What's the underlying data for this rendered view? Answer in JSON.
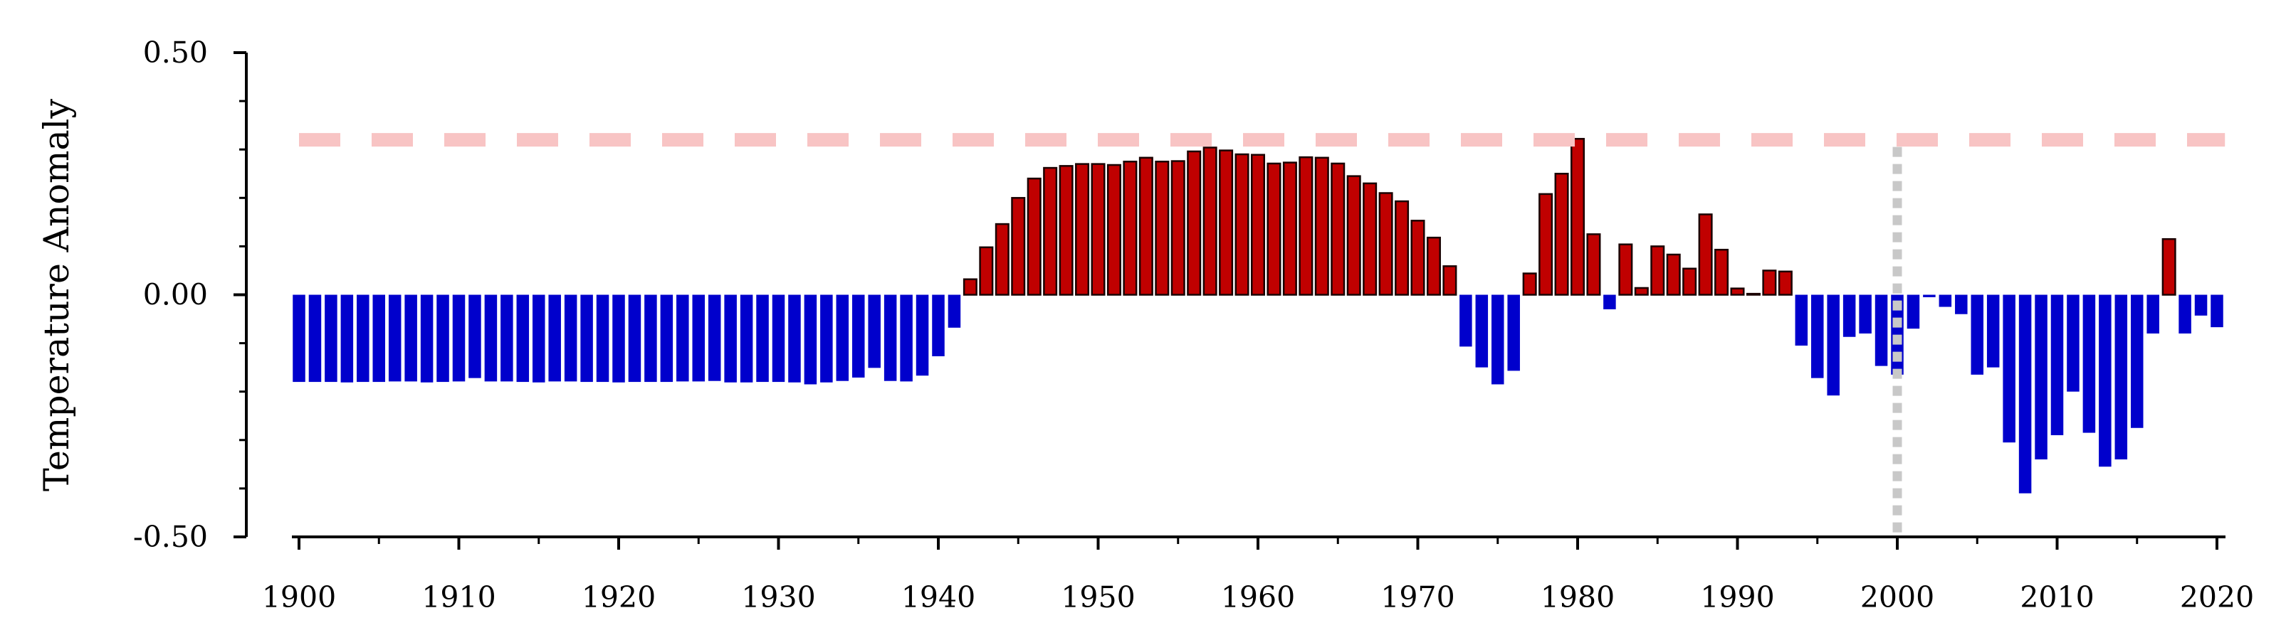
{
  "chart_data": {
    "type": "bar",
    "title": "",
    "xlabel": "",
    "ylabel": "Temperature Anomaly",
    "x_range": [
      1899.5,
      2020.5
    ],
    "ylim": [
      -0.5,
      0.5
    ],
    "x_ticks": [
      "1900",
      "1910",
      "1920",
      "1930",
      "1940",
      "1950",
      "1960",
      "1970",
      "1980",
      "1990",
      "2000",
      "2010",
      "2020"
    ],
    "y_ticks": [
      "-0.50",
      "0.00",
      "0.50"
    ],
    "grid": false,
    "legend": "none",
    "positive_color": "#c00000",
    "negative_color": "#0000cc",
    "reference_line": {
      "y": 0.32,
      "color": "#f8c4c4",
      "style": "dashed"
    },
    "vertical_marker": {
      "x": 2000,
      "color": "#c8c8c8",
      "style": "dotted"
    },
    "series": [
      {
        "x": [
          1900,
          1901,
          1902,
          1903,
          1904,
          1905,
          1906,
          1907,
          1908,
          1909,
          1910,
          1911,
          1912,
          1913,
          1914,
          1915,
          1916,
          1917,
          1918,
          1919,
          1920,
          1921,
          1922,
          1923,
          1924,
          1925,
          1926,
          1927,
          1928,
          1929,
          1930,
          1931,
          1932,
          1933,
          1934,
          1935,
          1936,
          1937,
          1938,
          1939,
          1940,
          1941,
          1942,
          1943,
          1944,
          1945,
          1946,
          1947,
          1948,
          1949,
          1950,
          1951,
          1952,
          1953,
          1954,
          1955,
          1956,
          1957,
          1958,
          1959,
          1960,
          1961,
          1962,
          1963,
          1964,
          1965,
          1966,
          1967,
          1968,
          1969,
          1970,
          1971,
          1972,
          1973,
          1974,
          1975,
          1976,
          1977,
          1978,
          1979,
          1980,
          1981,
          1982,
          1983,
          1984,
          1985,
          1986,
          1987,
          1988,
          1989,
          1990,
          1991,
          1992,
          1993,
          1994,
          1995,
          1996,
          1997,
          1998,
          1999,
          2000,
          2001,
          2002,
          2003,
          2004,
          2005,
          2006,
          2007,
          2008,
          2009,
          2010,
          2011,
          2012,
          2013,
          2014,
          2015,
          2016,
          2017,
          2018,
          2019,
          2020
        ],
        "values": [
          -0.18,
          -0.18,
          -0.18,
          -0.181,
          -0.18,
          -0.18,
          -0.179,
          -0.179,
          -0.181,
          -0.18,
          -0.179,
          -0.172,
          -0.179,
          -0.179,
          -0.18,
          -0.181,
          -0.179,
          -0.179,
          -0.18,
          -0.18,
          -0.181,
          -0.18,
          -0.18,
          -0.18,
          -0.179,
          -0.179,
          -0.178,
          -0.181,
          -0.181,
          -0.18,
          -0.18,
          -0.181,
          -0.185,
          -0.181,
          -0.178,
          -0.171,
          -0.151,
          -0.178,
          -0.179,
          -0.167,
          -0.127,
          -0.068,
          0.032,
          0.098,
          0.146,
          0.2,
          0.24,
          0.262,
          0.266,
          0.27,
          0.27,
          0.268,
          0.275,
          0.283,
          0.275,
          0.276,
          0.296,
          0.304,
          0.298,
          0.29,
          0.289,
          0.271,
          0.273,
          0.284,
          0.283,
          0.271,
          0.245,
          0.23,
          0.21,
          0.193,
          0.153,
          0.118,
          0.059,
          -0.107,
          -0.15,
          -0.185,
          -0.157,
          0.044,
          0.208,
          0.25,
          0.322,
          0.125,
          -0.03,
          0.104,
          0.014,
          0.1,
          0.083,
          0.054,
          0.166,
          0.093,
          0.013,
          0.002,
          0.05,
          0.048,
          -0.105,
          -0.172,
          -0.208,
          -0.087,
          -0.08,
          -0.147,
          -0.165,
          -0.07,
          -0.005,
          -0.025,
          -0.04,
          -0.165,
          -0.15,
          -0.305,
          -0.41,
          -0.34,
          -0.29,
          -0.2,
          -0.285,
          -0.355,
          -0.34,
          -0.275,
          -0.08,
          0.115,
          -0.08,
          -0.043,
          -0.067
        ]
      }
    ]
  }
}
